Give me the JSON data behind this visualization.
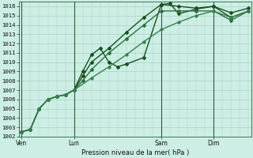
{
  "xlabel": "Pression niveau de la mer( hPa )",
  "bg_color": "#cceee4",
  "grid_color": "#aad4c4",
  "yticks": [
    1002,
    1003,
    1004,
    1005,
    1006,
    1007,
    1008,
    1009,
    1010,
    1011,
    1012,
    1013,
    1014,
    1015,
    1016
  ],
  "xtick_labels": [
    "Ven",
    "Lun",
    "Sam",
    "Dim"
  ],
  "xtick_positions": [
    0,
    36,
    96,
    132
  ],
  "xlim": [
    -2,
    158
  ],
  "ylim": [
    1002,
    1016.5
  ],
  "vlines": [
    0,
    36,
    96,
    132
  ],
  "vline_color": "#2a6040",
  "series": [
    {
      "x": [
        0,
        6,
        12,
        18,
        24,
        30,
        36,
        42,
        48,
        60,
        72,
        84,
        96,
        102,
        108,
        120,
        132,
        144,
        156
      ],
      "y": [
        1002.5,
        1002.8,
        1005.0,
        1006.0,
        1006.3,
        1006.5,
        1007.0,
        1008.5,
        1010.0,
        1011.5,
        1013.2,
        1014.8,
        1016.2,
        1016.3,
        1015.2,
        1015.7,
        1016.0,
        1015.3,
        1015.8
      ],
      "color": "#1a5020",
      "lw": 1.0,
      "marker": "D",
      "ms": 2.0
    },
    {
      "x": [
        0,
        6,
        12,
        18,
        24,
        30,
        36,
        42,
        48,
        54,
        60,
        66,
        72,
        84,
        96,
        108,
        120,
        132,
        144,
        156
      ],
      "y": [
        1002.5,
        1002.8,
        1005.0,
        1006.0,
        1006.3,
        1006.5,
        1007.0,
        1009.0,
        1010.8,
        1011.5,
        1010.0,
        1009.5,
        1009.8,
        1010.5,
        1016.2,
        1016.0,
        1015.8,
        1016.0,
        1014.8,
        1015.5
      ],
      "color": "#1a5020",
      "lw": 1.0,
      "marker": "D",
      "ms": 2.0
    },
    {
      "x": [
        0,
        6,
        12,
        18,
        24,
        30,
        36,
        42,
        48,
        60,
        72,
        84,
        96,
        108,
        120,
        132,
        144,
        156
      ],
      "y": [
        1002.5,
        1002.8,
        1005.0,
        1006.0,
        1006.3,
        1006.5,
        1007.0,
        1008.0,
        1009.2,
        1011.0,
        1012.5,
        1014.0,
        1015.5,
        1015.5,
        1015.5,
        1015.5,
        1014.5,
        1015.5
      ],
      "color": "#2d7040",
      "lw": 1.0,
      "marker": "D",
      "ms": 2.0
    },
    {
      "x": [
        0,
        6,
        12,
        18,
        24,
        30,
        36,
        48,
        60,
        72,
        84,
        96,
        108,
        120,
        132,
        144,
        156
      ],
      "y": [
        1002.5,
        1002.8,
        1005.0,
        1006.0,
        1006.3,
        1006.5,
        1007.0,
        1008.3,
        1009.5,
        1010.8,
        1012.2,
        1013.5,
        1014.3,
        1015.0,
        1015.5,
        1014.8,
        1015.5
      ],
      "color": "#3a8050",
      "lw": 1.0,
      "marker": "D",
      "ms": 1.8
    }
  ]
}
